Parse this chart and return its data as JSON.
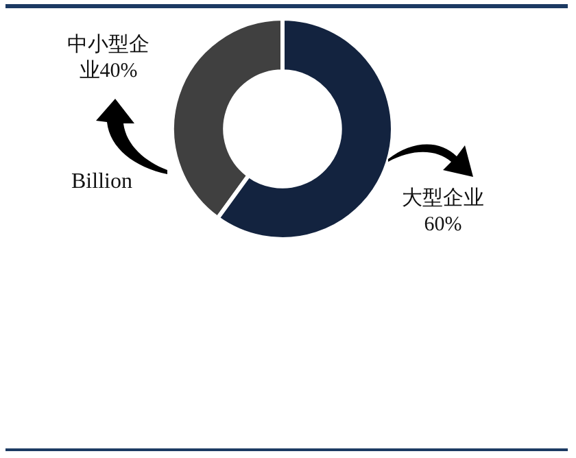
{
  "chart_data": {
    "type": "donut",
    "categories": [
      "中小型企业",
      "大型企业"
    ],
    "values": [
      40,
      60
    ],
    "colors": [
      "#404040",
      "#13233f"
    ],
    "value_labels": [
      "40%",
      "60%"
    ],
    "annotations": [
      "Billion"
    ]
  }
}
